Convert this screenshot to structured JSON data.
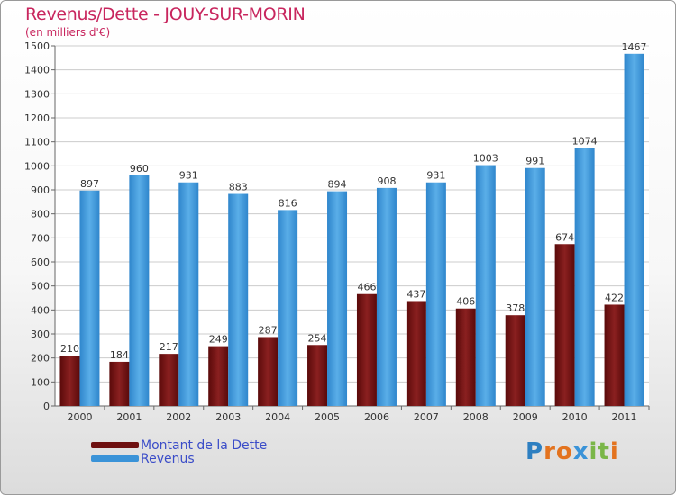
{
  "title": "Revenus/Dette - JOUY-SUR-MORIN",
  "subtitle": "(en milliers d'€)",
  "colors": {
    "title": "#c8265e",
    "debt_bar": "#6e1010",
    "revenue_bar": "#3a93d8",
    "legend_text": "#3a4cc8",
    "axis_text": "#333333"
  },
  "legend": {
    "debt_label": "Montant de la Dette",
    "revenue_label": "Revenus"
  },
  "logo": {
    "letters": [
      "P",
      "r",
      "o",
      "x",
      "i",
      "t",
      "i"
    ],
    "colors": [
      "#2d7fc1",
      "#e3731f",
      "#e3731f",
      "#3a93d8",
      "#7ab648",
      "#7ab648",
      "#e3731f"
    ]
  },
  "chart_data": {
    "type": "bar",
    "categories": [
      "2000",
      "2001",
      "2002",
      "2003",
      "2004",
      "2005",
      "2006",
      "2007",
      "2008",
      "2009",
      "2010",
      "2011"
    ],
    "series": [
      {
        "name": "Montant de la Dette",
        "values": [
          210,
          184,
          217,
          249,
          287,
          254,
          466,
          437,
          406,
          378,
          674,
          422
        ]
      },
      {
        "name": "Revenus",
        "values": [
          897,
          960,
          931,
          883,
          816,
          894,
          908,
          931,
          1003,
          991,
          1074,
          1467
        ]
      }
    ],
    "ylim": [
      0,
      1500
    ],
    "yticks": [
      0,
      100,
      200,
      300,
      400,
      500,
      600,
      700,
      800,
      900,
      1000,
      1100,
      1200,
      1300,
      1400,
      1500
    ],
    "grid": true,
    "legend_position": "bottom-left"
  }
}
